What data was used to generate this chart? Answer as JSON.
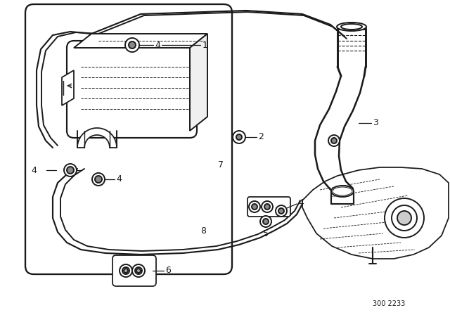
{
  "bg_color": "#ffffff",
  "line_color": "#1a1a1a",
  "watermark": "300 2233",
  "lw": 1.4,
  "figsize": [
    6.4,
    4.48
  ],
  "dpi": 100
}
